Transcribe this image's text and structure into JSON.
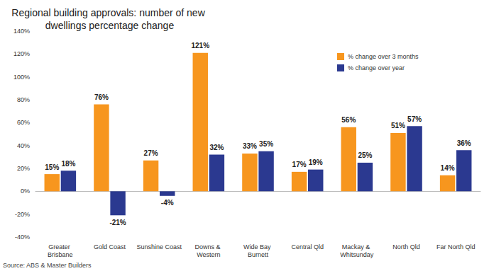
{
  "chart_data": {
    "type": "bar",
    "title": "Regional building approvals: number of new dwellings percentage change",
    "source": "Source: ABS & Master Builders",
    "categories": [
      "Greater Brisbane",
      "Gold Coast",
      "Sunshine Coast",
      "Downs & Western",
      "Wide Bay Burnett",
      "Central Qld",
      "Mackay & Whitsunday",
      "North Qld",
      "Far North Qld"
    ],
    "series": [
      {
        "name": "% change over 3 months",
        "color": "#f7961e",
        "values": [
          15,
          76,
          27,
          121,
          33,
          17,
          56,
          51,
          14
        ],
        "value_labels": [
          "15%",
          "76%",
          "27%",
          "121%",
          "33%",
          "17%",
          "56%",
          "51%",
          "14%"
        ]
      },
      {
        "name": "% change over year",
        "color": "#2b3990",
        "values": [
          18,
          -21,
          -4,
          32,
          35,
          19,
          25,
          57,
          36
        ],
        "value_labels": [
          "18%",
          "-21%",
          "-4%",
          "32%",
          "35%",
          "19%",
          "25%",
          "57%",
          "36%"
        ]
      }
    ],
    "ylim": [
      -40,
      140
    ],
    "yticks": [
      {
        "value": -40,
        "label": "-40%"
      },
      {
        "value": -20,
        "label": "-20%"
      },
      {
        "value": 0,
        "label": "0%"
      },
      {
        "value": 20,
        "label": "20%"
      },
      {
        "value": 40,
        "label": "40%"
      },
      {
        "value": 60,
        "label": "60%"
      },
      {
        "value": 80,
        "label": "80%"
      },
      {
        "value": 100,
        "label": "100%"
      },
      {
        "value": 120,
        "label": "120%"
      },
      {
        "value": 140,
        "label": "140%"
      }
    ],
    "grid": false,
    "legend": "upper right",
    "data_labels": true
  }
}
